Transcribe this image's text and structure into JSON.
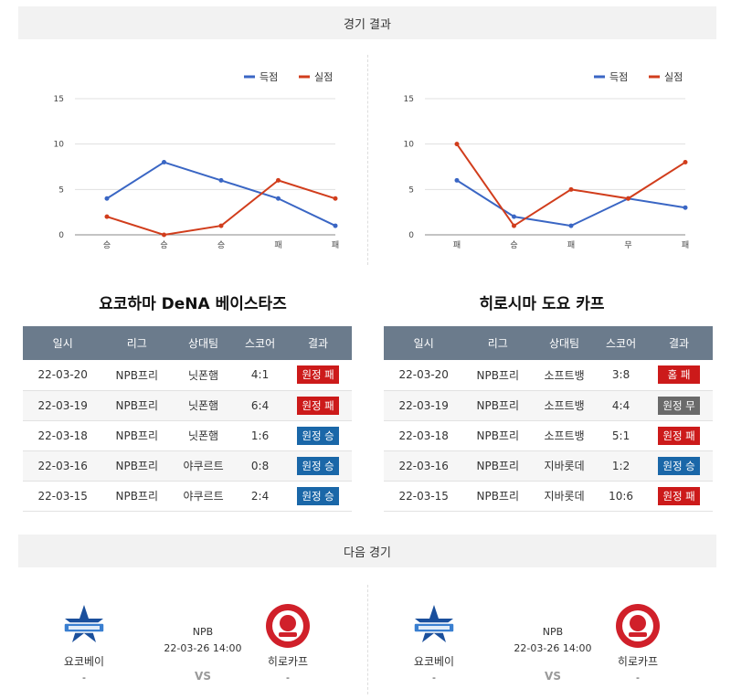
{
  "sections": {
    "results_title": "경기 결과",
    "next_title": "다음 경기"
  },
  "colors": {
    "scored": "#3a66c4",
    "conceded": "#d13d1c"
  },
  "legend": {
    "scored": "득점",
    "conceded": "실점"
  },
  "chart_data": [
    {
      "type": "line",
      "categories": [
        "승",
        "승",
        "승",
        "패",
        "패"
      ],
      "series": [
        {
          "name": "득점",
          "values": [
            4,
            8,
            6,
            4,
            1
          ]
        },
        {
          "name": "실점",
          "values": [
            2,
            0,
            1,
            6,
            4
          ]
        }
      ],
      "ylim": [
        0,
        15
      ],
      "yticks": [
        0,
        5,
        10,
        15
      ],
      "legend_position": "top-right",
      "grid": true
    },
    {
      "type": "line",
      "categories": [
        "패",
        "승",
        "패",
        "무",
        "패"
      ],
      "series": [
        {
          "name": "득점",
          "values": [
            6,
            2,
            1,
            4,
            3
          ]
        },
        {
          "name": "실점",
          "values": [
            10,
            1,
            5,
            4,
            8
          ]
        }
      ],
      "ylim": [
        0,
        15
      ],
      "yticks": [
        0,
        5,
        10,
        15
      ],
      "legend_position": "top-right",
      "grid": true
    }
  ],
  "headers": [
    "일시",
    "리그",
    "상대팀",
    "스코어",
    "결과"
  ],
  "teams": [
    {
      "title": "요코하마 DeNA 베이스타즈",
      "rows": [
        {
          "date": "22-03-20",
          "league": "NPB프리",
          "opponent": "닛폰햄",
          "score": "4:1",
          "result": "원정 패",
          "color": "red"
        },
        {
          "date": "22-03-19",
          "league": "NPB프리",
          "opponent": "닛폰햄",
          "score": "6:4",
          "result": "원정 패",
          "color": "red"
        },
        {
          "date": "22-03-18",
          "league": "NPB프리",
          "opponent": "닛폰햄",
          "score": "1:6",
          "result": "원정 승",
          "color": "blue"
        },
        {
          "date": "22-03-16",
          "league": "NPB프리",
          "opponent": "야쿠르트",
          "score": "0:8",
          "result": "원정 승",
          "color": "blue"
        },
        {
          "date": "22-03-15",
          "league": "NPB프리",
          "opponent": "야쿠르트",
          "score": "2:4",
          "result": "원정 승",
          "color": "blue"
        }
      ]
    },
    {
      "title": "히로시마 도요 카프",
      "rows": [
        {
          "date": "22-03-20",
          "league": "NPB프리",
          "opponent": "소프트뱅",
          "score": "3:8",
          "result": "홈 패",
          "color": "red"
        },
        {
          "date": "22-03-19",
          "league": "NPB프리",
          "opponent": "소프트뱅",
          "score": "4:4",
          "result": "원정 무",
          "color": "gray"
        },
        {
          "date": "22-03-18",
          "league": "NPB프리",
          "opponent": "소프트뱅",
          "score": "5:1",
          "result": "원정 패",
          "color": "red"
        },
        {
          "date": "22-03-16",
          "league": "NPB프리",
          "opponent": "지바롯데",
          "score": "1:2",
          "result": "원정 승",
          "color": "blue"
        },
        {
          "date": "22-03-15",
          "league": "NPB프리",
          "opponent": "지바롯데",
          "score": "10:6",
          "result": "원정 패",
          "color": "red"
        }
      ]
    }
  ],
  "matches": [
    {
      "home": "요코베이",
      "away": "히로카프",
      "home_score": "-",
      "away_score": "-",
      "league": "NPB",
      "datetime": "22-03-26 14:00",
      "vs": "VS"
    },
    {
      "home": "요코베이",
      "away": "히로카프",
      "home_score": "-",
      "away_score": "-",
      "league": "NPB",
      "datetime": "22-03-26 14:00",
      "vs": "VS"
    }
  ]
}
